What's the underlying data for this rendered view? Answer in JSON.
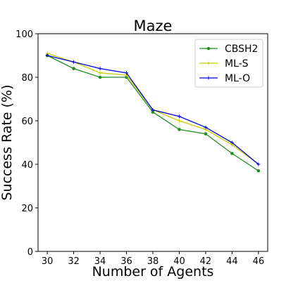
{
  "chart_data": {
    "type": "line",
    "title": "Maze",
    "xlabel": "Number of Agents",
    "ylabel": "Success Rate (%)",
    "x": [
      30,
      32,
      34,
      36,
      38,
      40,
      42,
      44,
      46
    ],
    "xlim": [
      29.3,
      46.7
    ],
    "ylim": [
      0,
      100
    ],
    "yticks": [
      0,
      20,
      40,
      60,
      80,
      100
    ],
    "legend_position": "top-right",
    "grid": false,
    "series": [
      {
        "name": "CBSH2",
        "color": "#228b22",
        "marker": "dot",
        "values": [
          90,
          84,
          80,
          80,
          64,
          56,
          54,
          45,
          37
        ]
      },
      {
        "name": "ML-S",
        "color": "#cccc00",
        "marker": "plus",
        "values": [
          91,
          87,
          82,
          81,
          65,
          60,
          56,
          49,
          40
        ]
      },
      {
        "name": "ML-O",
        "color": "#0000dd",
        "marker": "plus",
        "values": [
          90,
          87,
          84,
          82,
          65,
          62,
          57,
          50,
          40
        ]
      }
    ]
  }
}
